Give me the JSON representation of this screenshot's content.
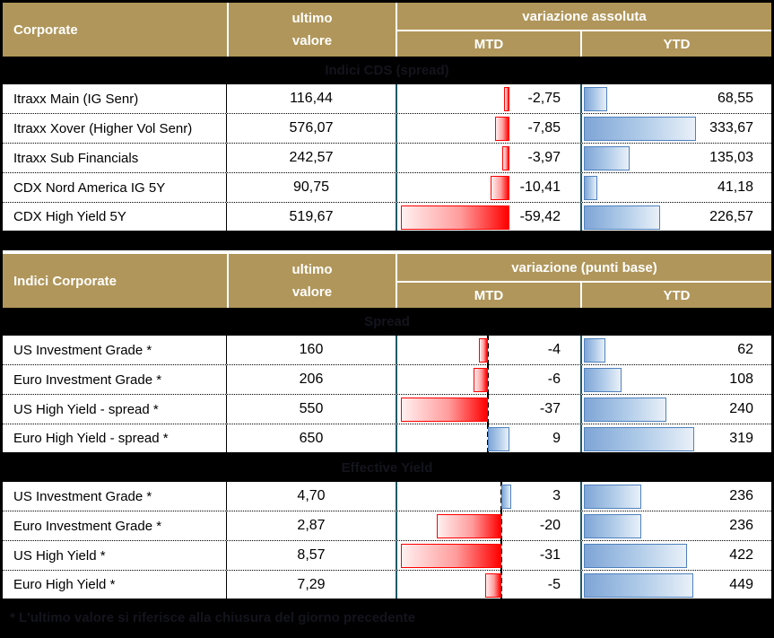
{
  "colors": {
    "header_gold": "#B0965A",
    "header_text": "#FFFFFF",
    "band_background": "#000000",
    "band_text": "#14141D",
    "column_divider_teal": "#215968",
    "negative_bar": "#FF0000",
    "positive_bar_border": "#4F81BD"
  },
  "header1": {
    "title": "Corporate",
    "value_line1": "ultimo",
    "value_line2": "valore",
    "change_label": "variazione assoluta",
    "mtd": "MTD",
    "ytd": "YTD"
  },
  "header2": {
    "title": "Indici Corporate",
    "value_line1": "ultimo",
    "value_line2": "valore",
    "change_label": "variazione (punti base)",
    "mtd": "MTD",
    "ytd": "YTD"
  },
  "sections": [
    {
      "id": "cds",
      "band": "Indici CDS (spread)",
      "bars": {
        "mtd_scale": 2.04,
        "mtd_baseline": 127,
        "mtd_axis": false,
        "ytd_scale": 0.375
      },
      "rows": [
        {
          "label": "Itraxx Main (IG Senr)",
          "value": "116,44",
          "mtd": -2.75,
          "mtd_text": "-2,75",
          "ytd": 68.55,
          "ytd_text": "68,55"
        },
        {
          "label": "Itraxx Xover (Higher Vol Senr)",
          "value": "576,07",
          "mtd": -7.85,
          "mtd_text": "-7,85",
          "ytd": 333.67,
          "ytd_text": "333,67"
        },
        {
          "label": "Itraxx Sub Financials",
          "value": "242,57",
          "mtd": -3.97,
          "mtd_text": "-3,97",
          "ytd": 135.03,
          "ytd_text": "135,03"
        },
        {
          "label": "CDX Nord America IG 5Y",
          "value": "90,75",
          "mtd": -10.41,
          "mtd_text": "-10,41",
          "ytd": 41.18,
          "ytd_text": "41,18"
        },
        {
          "label": "CDX High Yield 5Y",
          "value": "519,67",
          "mtd": -59.42,
          "mtd_text": "-59,42",
          "ytd": 226.57,
          "ytd_text": "226,57"
        }
      ]
    },
    {
      "id": "spread",
      "band": "Spread",
      "bars": {
        "mtd_scale": 2.62,
        "mtd_baseline": 103,
        "mtd_axis": true,
        "ytd_scale": 0.385
      },
      "rows": [
        {
          "label": "US Investment Grade *",
          "value": "160",
          "mtd": -4,
          "mtd_text": "-4",
          "ytd": 62,
          "ytd_text": "62"
        },
        {
          "label": "Euro Investment Grade *",
          "value": "206",
          "mtd": -6,
          "mtd_text": "-6",
          "ytd": 108,
          "ytd_text": "108"
        },
        {
          "label": "US High Yield  - spread *",
          "value": "550",
          "mtd": -37,
          "mtd_text": "-37",
          "ytd": 240,
          "ytd_text": "240"
        },
        {
          "label": "Euro High Yield  - spread *",
          "value": "650",
          "mtd": 9,
          "mtd_text": "9",
          "ytd": 319,
          "ytd_text": "319"
        }
      ]
    },
    {
      "id": "yield",
      "band": "Effective Yield",
      "bars": {
        "mtd_scale": 3.61,
        "mtd_baseline": 118,
        "mtd_axis": true,
        "ytd_scale": 0.272
      },
      "rows": [
        {
          "label": "US Investment Grade *",
          "value": "4,70",
          "mtd": 3,
          "mtd_text": "3",
          "ytd": 236,
          "ytd_text": "236"
        },
        {
          "label": "Euro Investment Grade *",
          "value": "2,87",
          "mtd": -20,
          "mtd_text": "-20",
          "ytd": 236,
          "ytd_text": "236"
        },
        {
          "label": "US High Yield *",
          "value": "8,57",
          "mtd": -31,
          "mtd_text": "-31",
          "ytd": 422,
          "ytd_text": "422"
        },
        {
          "label": "Euro High Yield *",
          "value": "7,29",
          "mtd": -5,
          "mtd_text": "-5",
          "ytd": 449,
          "ytd_text": "449"
        }
      ]
    }
  ],
  "footnote": "* L'ultimo valore si riferisce alla chiusura del giorno precedente",
  "chart_data": [
    {
      "type": "bar",
      "title": "Corporate — Indici CDS (spread) — variazione assoluta",
      "categories": [
        "Itraxx Main (IG Senr)",
        "Itraxx Xover (Higher Vol Senr)",
        "Itraxx Sub Financials",
        "CDX Nord America IG 5Y",
        "CDX High Yield 5Y"
      ],
      "ultimo_valore": [
        116.44,
        576.07,
        242.57,
        90.75,
        519.67
      ],
      "series": [
        {
          "name": "MTD",
          "values": [
            -2.75,
            -7.85,
            -3.97,
            -10.41,
            -59.42
          ],
          "color": "#FF0000"
        },
        {
          "name": "YTD",
          "values": [
            68.55,
            333.67,
            135.03,
            41.18,
            226.57
          ],
          "color": "#4F81BD"
        }
      ],
      "layout": {
        "orientation": "horizontal-in-cell-databar",
        "grid": false
      }
    },
    {
      "type": "bar",
      "title": "Indici Corporate — Spread — variazione (punti base)",
      "categories": [
        "US Investment Grade *",
        "Euro Investment Grade *",
        "US High Yield  - spread *",
        "Euro High Yield  - spread *"
      ],
      "ultimo_valore": [
        160,
        206,
        550,
        650
      ],
      "series": [
        {
          "name": "MTD",
          "values": [
            -4,
            -6,
            -37,
            9
          ],
          "color": "#FF0000"
        },
        {
          "name": "YTD",
          "values": [
            62,
            108,
            240,
            319
          ],
          "color": "#4F81BD"
        }
      ],
      "layout": {
        "orientation": "horizontal-in-cell-databar",
        "grid": false
      }
    },
    {
      "type": "bar",
      "title": "Indici Corporate — Effective Yield — variazione (punti base)",
      "categories": [
        "US Investment Grade *",
        "Euro Investment Grade *",
        "US High Yield *",
        "Euro High Yield *"
      ],
      "ultimo_valore": [
        4.7,
        2.87,
        8.57,
        7.29
      ],
      "series": [
        {
          "name": "MTD",
          "values": [
            3,
            -20,
            -31,
            -5
          ],
          "color": "#FF0000"
        },
        {
          "name": "YTD",
          "values": [
            236,
            236,
            422,
            449
          ],
          "color": "#4F81BD"
        }
      ],
      "layout": {
        "orientation": "horizontal-in-cell-databar",
        "grid": false
      }
    }
  ]
}
